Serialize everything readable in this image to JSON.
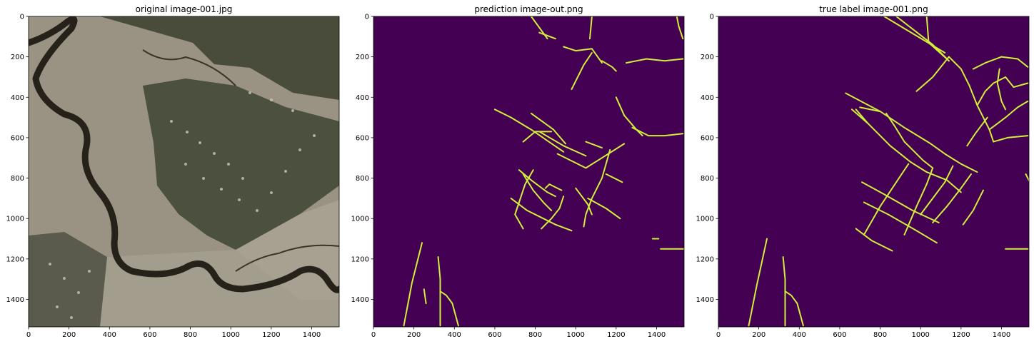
{
  "figure": {
    "panels": [
      {
        "title": "original image-001.jpg",
        "kind": "photo"
      },
      {
        "title": "prediction image-out.png",
        "kind": "mask"
      },
      {
        "title": "true label image-001.png",
        "kind": "mask"
      }
    ]
  },
  "chart_data": {
    "type": "image-grid",
    "xlim": [
      0,
      1536
    ],
    "ylim": [
      1536,
      0
    ],
    "xticks": [
      0,
      200,
      400,
      600,
      800,
      1000,
      1200,
      1400
    ],
    "yticks": [
      0,
      200,
      400,
      600,
      800,
      1000,
      1200,
      1400
    ],
    "mask_colors": {
      "background": "#440154",
      "road": "#d2ee3a"
    },
    "photo_colors": {
      "marsh": "#9a9383",
      "river": "#26221a",
      "forest": "#3d4630",
      "houses": "#b4b2aa"
    },
    "prediction_segments": [
      [
        [
          780,
          0
        ],
        [
          860,
          110
        ]
      ],
      [
        [
          820,
          80
        ],
        [
          900,
          110
        ]
      ],
      [
        [
          1080,
          0
        ],
        [
          1070,
          110
        ]
      ],
      [
        [
          940,
          150
        ],
        [
          1000,
          170
        ],
        [
          1080,
          160
        ],
        [
          1130,
          230
        ]
      ],
      [
        [
          1080,
          180
        ],
        [
          1040,
          240
        ],
        [
          1000,
          320
        ],
        [
          980,
          360
        ]
      ],
      [
        [
          1130,
          220
        ],
        [
          1180,
          250
        ],
        [
          1200,
          270
        ]
      ],
      [
        [
          1250,
          230
        ],
        [
          1350,
          210
        ],
        [
          1440,
          220
        ],
        [
          1530,
          210
        ]
      ],
      [
        [
          1500,
          0
        ],
        [
          1510,
          50
        ],
        [
          1530,
          110
        ]
      ],
      [
        [
          1200,
          400
        ],
        [
          1240,
          490
        ],
        [
          1300,
          560
        ],
        [
          1330,
          590
        ]
      ],
      [
        [
          1280,
          550
        ],
        [
          1360,
          590
        ],
        [
          1440,
          590
        ],
        [
          1530,
          580
        ]
      ],
      [
        [
          600,
          460
        ],
        [
          680,
          500
        ]
      ],
      [
        [
          680,
          500
        ],
        [
          780,
          560
        ],
        [
          940,
          670
        ]
      ],
      [
        [
          780,
          480
        ],
        [
          890,
          560
        ],
        [
          950,
          630
        ]
      ],
      [
        [
          820,
          570
        ],
        [
          940,
          640
        ],
        [
          1050,
          690
        ]
      ],
      [
        [
          740,
          620
        ],
        [
          800,
          570
        ],
        [
          880,
          570
        ]
      ],
      [
        [
          910,
          680
        ],
        [
          990,
          720
        ],
        [
          1050,
          750
        ],
        [
          1130,
          700
        ],
        [
          1240,
          630
        ]
      ],
      [
        [
          1050,
          620
        ],
        [
          1130,
          650
        ]
      ],
      [
        [
          720,
          760
        ],
        [
          780,
          810
        ],
        [
          860,
          870
        ],
        [
          900,
          890
        ]
      ],
      [
        [
          790,
          760
        ],
        [
          750,
          830
        ],
        [
          720,
          920
        ],
        [
          700,
          980
        ],
        [
          740,
          1050
        ]
      ],
      [
        [
          740,
          780
        ],
        [
          790,
          860
        ],
        [
          840,
          920
        ],
        [
          880,
          960
        ]
      ],
      [
        [
          850,
          850
        ],
        [
          870,
          830
        ],
        [
          930,
          860
        ]
      ],
      [
        [
          680,
          900
        ],
        [
          760,
          960
        ],
        [
          840,
          1000
        ],
        [
          900,
          1030
        ],
        [
          980,
          1060
        ]
      ],
      [
        [
          1000,
          850
        ],
        [
          1060,
          930
        ],
        [
          1080,
          980
        ]
      ],
      [
        [
          940,
          890
        ],
        [
          920,
          950
        ],
        [
          880,
          1000
        ],
        [
          830,
          1050
        ]
      ],
      [
        [
          1170,
          660
        ],
        [
          1130,
          800
        ],
        [
          1080,
          900
        ],
        [
          1050,
          980
        ],
        [
          1040,
          1040
        ]
      ],
      [
        [
          1060,
          900
        ],
        [
          1150,
          950
        ],
        [
          1220,
          1000
        ]
      ],
      [
        [
          1150,
          780
        ],
        [
          1230,
          820
        ]
      ],
      [
        [
          1380,
          1100
        ],
        [
          1410,
          1100
        ]
      ],
      [
        [
          1420,
          1150
        ],
        [
          1540,
          1150
        ]
      ],
      [
        [
          150,
          1530
        ],
        [
          190,
          1320
        ],
        [
          240,
          1120
        ]
      ],
      [
        [
          250,
          1350
        ],
        [
          260,
          1420
        ]
      ],
      [
        [
          320,
          1190
        ],
        [
          330,
          1300
        ],
        [
          330,
          1400
        ],
        [
          330,
          1530
        ]
      ],
      [
        [
          330,
          1360
        ],
        [
          360,
          1380
        ],
        [
          390,
          1420
        ],
        [
          420,
          1530
        ]
      ]
    ],
    "label_segments": [
      [
        [
          820,
          0
        ],
        [
          1120,
          180
        ]
      ],
      [
        [
          880,
          0
        ],
        [
          1060,
          140
        ],
        [
          1140,
          220
        ]
      ],
      [
        [
          1030,
          0
        ],
        [
          1040,
          130
        ],
        [
          1140,
          220
        ]
      ],
      [
        [
          1140,
          200
        ],
        [
          1200,
          260
        ],
        [
          1240,
          340
        ],
        [
          1280,
          440
        ],
        [
          1340,
          560
        ],
        [
          1360,
          620
        ]
      ],
      [
        [
          1140,
          200
        ],
        [
          1060,
          300
        ],
        [
          980,
          370
        ]
      ],
      [
        [
          1260,
          260
        ],
        [
          1320,
          230
        ],
        [
          1400,
          200
        ],
        [
          1480,
          210
        ],
        [
          1530,
          250
        ]
      ],
      [
        [
          1390,
          260
        ],
        [
          1380,
          330
        ],
        [
          1400,
          420
        ],
        [
          1420,
          460
        ]
      ],
      [
        [
          1420,
          300
        ],
        [
          1460,
          350
        ],
        [
          1530,
          330
        ]
      ],
      [
        [
          1280,
          440
        ],
        [
          1320,
          370
        ],
        [
          1360,
          330
        ],
        [
          1420,
          300
        ]
      ],
      [
        [
          1340,
          560
        ],
        [
          1420,
          500
        ],
        [
          1480,
          450
        ],
        [
          1530,
          420
        ]
      ],
      [
        [
          1360,
          620
        ],
        [
          1430,
          600
        ],
        [
          1530,
          590
        ]
      ],
      [
        [
          630,
          380
        ],
        [
          800,
          470
        ],
        [
          920,
          550
        ],
        [
          1050,
          630
        ],
        [
          1120,
          680
        ],
        [
          1200,
          730
        ],
        [
          1280,
          770
        ]
      ],
      [
        [
          830,
          480
        ],
        [
          870,
          540
        ],
        [
          920,
          620
        ],
        [
          960,
          660
        ],
        [
          1010,
          710
        ],
        [
          1060,
          750
        ]
      ],
      [
        [
          660,
          460
        ],
        [
          740,
          530
        ],
        [
          850,
          640
        ],
        [
          950,
          720
        ],
        [
          1030,
          770
        ],
        [
          1130,
          810
        ],
        [
          1200,
          870
        ]
      ],
      [
        [
          800,
          470
        ],
        [
          700,
          450
        ]
      ],
      [
        [
          740,
          530
        ],
        [
          680,
          460
        ]
      ],
      [
        [
          940,
          730
        ],
        [
          880,
          820
        ],
        [
          800,
          940
        ],
        [
          720,
          1080
        ]
      ],
      [
        [
          1060,
          750
        ],
        [
          1030,
          830
        ],
        [
          980,
          940
        ],
        [
          920,
          1080
        ]
      ],
      [
        [
          710,
          820
        ],
        [
          820,
          880
        ],
        [
          960,
          960
        ],
        [
          1090,
          1020
        ]
      ],
      [
        [
          720,
          920
        ],
        [
          840,
          980
        ],
        [
          980,
          1060
        ],
        [
          1080,
          1120
        ]
      ],
      [
        [
          680,
          1050
        ],
        [
          760,
          1110
        ],
        [
          860,
          1160
        ]
      ],
      [
        [
          1160,
          740
        ],
        [
          1120,
          820
        ],
        [
          1060,
          900
        ],
        [
          1000,
          980
        ]
      ],
      [
        [
          1250,
          780
        ],
        [
          1200,
          850
        ],
        [
          1130,
          940
        ],
        [
          1060,
          1020
        ]
      ],
      [
        [
          1310,
          860
        ],
        [
          1260,
          960
        ],
        [
          1210,
          1030
        ]
      ],
      [
        [
          1330,
          500
        ],
        [
          1270,
          580
        ],
        [
          1230,
          640
        ]
      ],
      [
        [
          1420,
          1150
        ],
        [
          1530,
          1150
        ]
      ],
      [
        [
          1540,
          820
        ],
        [
          1520,
          780
        ]
      ],
      [
        [
          150,
          1530
        ],
        [
          190,
          1330
        ],
        [
          240,
          1100
        ]
      ],
      [
        [
          320,
          1190
        ],
        [
          330,
          1300
        ],
        [
          330,
          1530
        ]
      ],
      [
        [
          330,
          1360
        ],
        [
          360,
          1380
        ],
        [
          390,
          1420
        ],
        [
          420,
          1530
        ]
      ]
    ]
  }
}
